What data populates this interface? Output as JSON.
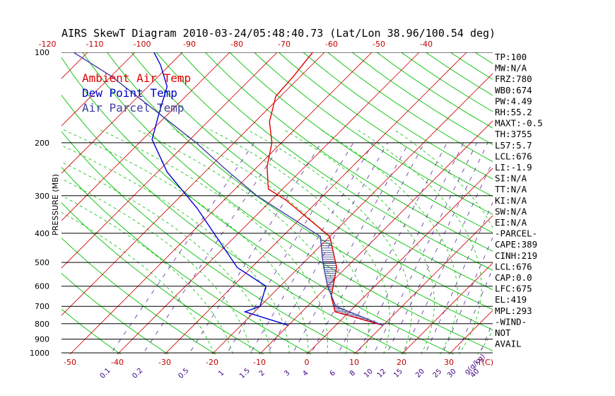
{
  "chart_data": {
    "type": "line",
    "title": "AIRS SkewT Diagram 2010-03-24/05:48:40.73 (Lat/Lon 38.96/100.54 deg)",
    "ylabel": "PRESSURE (MB)",
    "xlabel_bottom_unit": "T(C)",
    "mixing_ratio_unit": "g(g/kg)",
    "pressure_ticks": [
      "100",
      "200",
      "300",
      "400",
      "500",
      "600",
      "700",
      "800",
      "900",
      "1000"
    ],
    "pressure_values": [
      100,
      200,
      300,
      400,
      500,
      600,
      700,
      800,
      900,
      1000
    ],
    "top_temp_ticks": [
      "-120",
      "-110",
      "-100",
      "-90",
      "-80",
      "-70",
      "-60",
      "-50",
      "-40"
    ],
    "top_temp_values": [
      -120,
      -110,
      -100,
      -90,
      -80,
      -70,
      -60,
      -50,
      -40
    ],
    "bottom_temp_ticks": [
      "-50",
      "-40",
      "-30",
      "-20",
      "-10",
      "0",
      "10",
      "20",
      "30"
    ],
    "bottom_temp_values": [
      -50,
      -40,
      -30,
      -20,
      -10,
      0,
      10,
      20,
      30
    ],
    "mixing_ratio_ticks": [
      "0.1",
      "0.2",
      "0.5",
      "1",
      "1.5",
      "2",
      "3",
      "4",
      "6",
      "8",
      "10",
      "12",
      "15",
      "20",
      "25",
      "30",
      "40"
    ],
    "legend": [
      {
        "label": "Ambient Air Temp",
        "color": "#e00000"
      },
      {
        "label": "Dew Point Temp",
        "color": "#0000d0"
      },
      {
        "label": "Air Parcel Temp",
        "color": "#4040a0"
      }
    ],
    "series": [
      {
        "name": "Ambient Air Temp",
        "color": "#e00000",
        "points": [
          {
            "p": 810,
            "t": 10
          },
          {
            "p": 730,
            "t": -3
          },
          {
            "p": 650,
            "t": -7
          },
          {
            "p": 520,
            "t": -12
          },
          {
            "p": 410,
            "t": -20
          },
          {
            "p": 310,
            "t": -37
          },
          {
            "p": 285,
            "t": -43
          },
          {
            "p": 240,
            "t": -48
          },
          {
            "p": 200,
            "t": -52
          },
          {
            "p": 170,
            "t": -57
          },
          {
            "p": 140,
            "t": -61
          },
          {
            "p": 120,
            "t": -61.5
          },
          {
            "p": 100,
            "t": -62.5
          }
        ]
      },
      {
        "name": "Dew Point Temp",
        "color": "#0000d0",
        "points": [
          {
            "p": 810,
            "t": -10
          },
          {
            "p": 730,
            "t": -22
          },
          {
            "p": 700,
            "t": -20
          },
          {
            "p": 600,
            "t": -23
          },
          {
            "p": 520,
            "t": -33
          },
          {
            "p": 410,
            "t": -44
          },
          {
            "p": 330,
            "t": -54
          },
          {
            "p": 250,
            "t": -68
          },
          {
            "p": 195,
            "t": -78
          },
          {
            "p": 160,
            "t": -82
          },
          {
            "p": 130,
            "t": -86
          },
          {
            "p": 110,
            "t": -92
          },
          {
            "p": 100,
            "t": -96
          }
        ]
      },
      {
        "name": "Air Parcel Temp",
        "color": "#4040a0",
        "points": [
          {
            "p": 810,
            "t": 10
          },
          {
            "p": 700,
            "t": -4
          },
          {
            "p": 600,
            "t": -10
          },
          {
            "p": 500,
            "t": -16
          },
          {
            "p": 410,
            "t": -22
          },
          {
            "p": 300,
            "t": -44
          },
          {
            "p": 250,
            "t": -55
          },
          {
            "p": 200,
            "t": -68
          },
          {
            "p": 150,
            "t": -86
          },
          {
            "p": 120,
            "t": -100
          },
          {
            "p": 100,
            "t": -113
          }
        ]
      }
    ],
    "indices": [
      "TP:100",
      "MW:N/A",
      "FRZ:780",
      "WB0:674",
      "PW:4.49",
      "RH:55.2",
      "MAXT:-0.5",
      "TH:3755",
      "L57:5.7",
      "LCL:676",
      "LI:-1.9",
      "SI:N/A",
      "TT:N/A",
      "KI:N/A",
      "SW:N/A",
      "EI:N/A",
      "-PARCEL-",
      "CAPE:389",
      "CINH:219",
      "LCL:676",
      "CAP:0.0",
      "LFC:675",
      "EL:419",
      "MPL:293",
      "-WIND-",
      "NOT",
      "AVAIL"
    ]
  }
}
